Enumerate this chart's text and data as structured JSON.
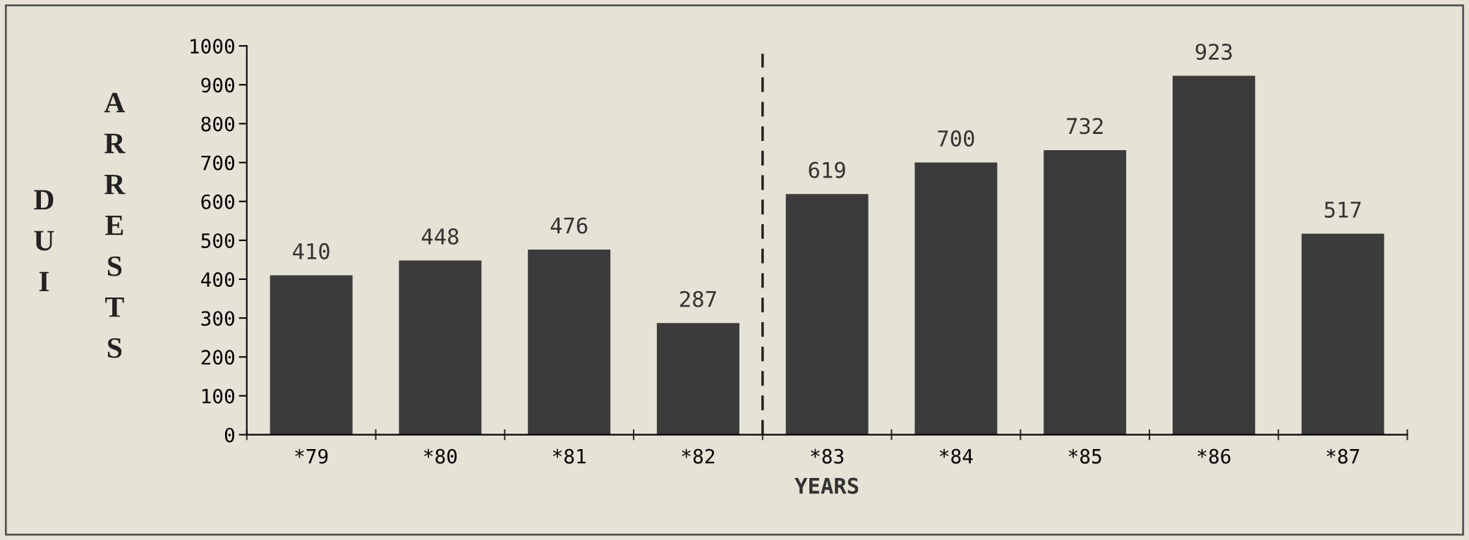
{
  "chart_data": {
    "type": "bar",
    "xlabel": "YEARS",
    "ylabel": "DUI ARRESTS",
    "categories": [
      "*79",
      "*80",
      "*81",
      "*82",
      "*83",
      "*84",
      "*85",
      "*86",
      "*87"
    ],
    "values": [
      410,
      448,
      476,
      287,
      619,
      700,
      732,
      923,
      517
    ],
    "color": "#3b3b3b",
    "ylim": [
      0,
      1000
    ],
    "yticks": [
      0,
      100,
      200,
      300,
      400,
      500,
      600,
      700,
      800,
      900,
      1000
    ],
    "grid": false,
    "data_labels": true
  }
}
